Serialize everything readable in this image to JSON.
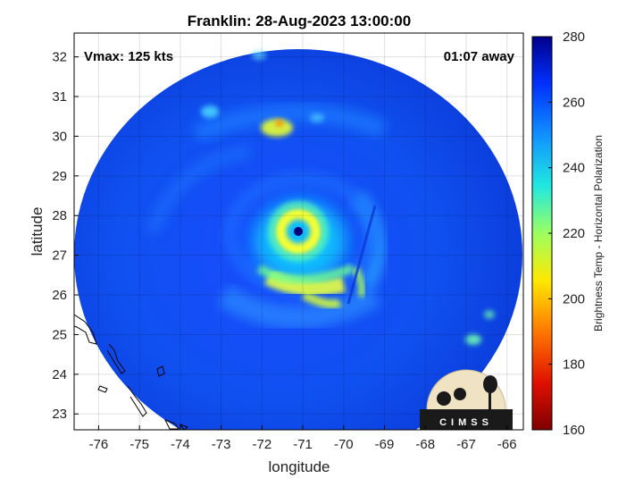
{
  "chart_data": {
    "type": "heatmap",
    "title": "Franklin: 28-Aug-2023 13:00:00",
    "xlabel": "longitude",
    "ylabel": "latitude",
    "xlim": [
      -76.6,
      -65.6
    ],
    "ylim": [
      22.6,
      32.6
    ],
    "xticks": [
      "-76",
      "-75",
      "-74",
      "-73",
      "-72",
      "-71",
      "-70",
      "-69",
      "-68",
      "-67",
      "-66"
    ],
    "yticks": [
      "23",
      "24",
      "25",
      "26",
      "27",
      "28",
      "29",
      "30",
      "31",
      "32"
    ],
    "grid": true,
    "annotations": {
      "left": "Vmax: 125 kts",
      "right": "01:07 away"
    },
    "storm_center": {
      "lon": -71.0,
      "lat": 27.6
    },
    "colorbar": {
      "label": "Brightness Temp - Horizontal Polarization",
      "range": [
        160,
        280
      ],
      "ticks": [
        "160",
        "180",
        "200",
        "220",
        "240",
        "260",
        "280"
      ]
    },
    "features": [
      {
        "kind": "eye",
        "lon": -71.0,
        "lat": 27.6,
        "value": 275
      },
      {
        "kind": "eyewall",
        "lon": -71.0,
        "lat": 27.6,
        "value": 205
      },
      {
        "kind": "rainband",
        "lon": -70.6,
        "lat": 26.3,
        "value": 215
      },
      {
        "kind": "convective-cell",
        "lon": -71.5,
        "lat": 30.2,
        "value": 212
      },
      {
        "kind": "convective-cell",
        "lon": -66.8,
        "lat": 24.9,
        "value": 228
      }
    ]
  },
  "logo": {
    "text": "CIMSS"
  }
}
